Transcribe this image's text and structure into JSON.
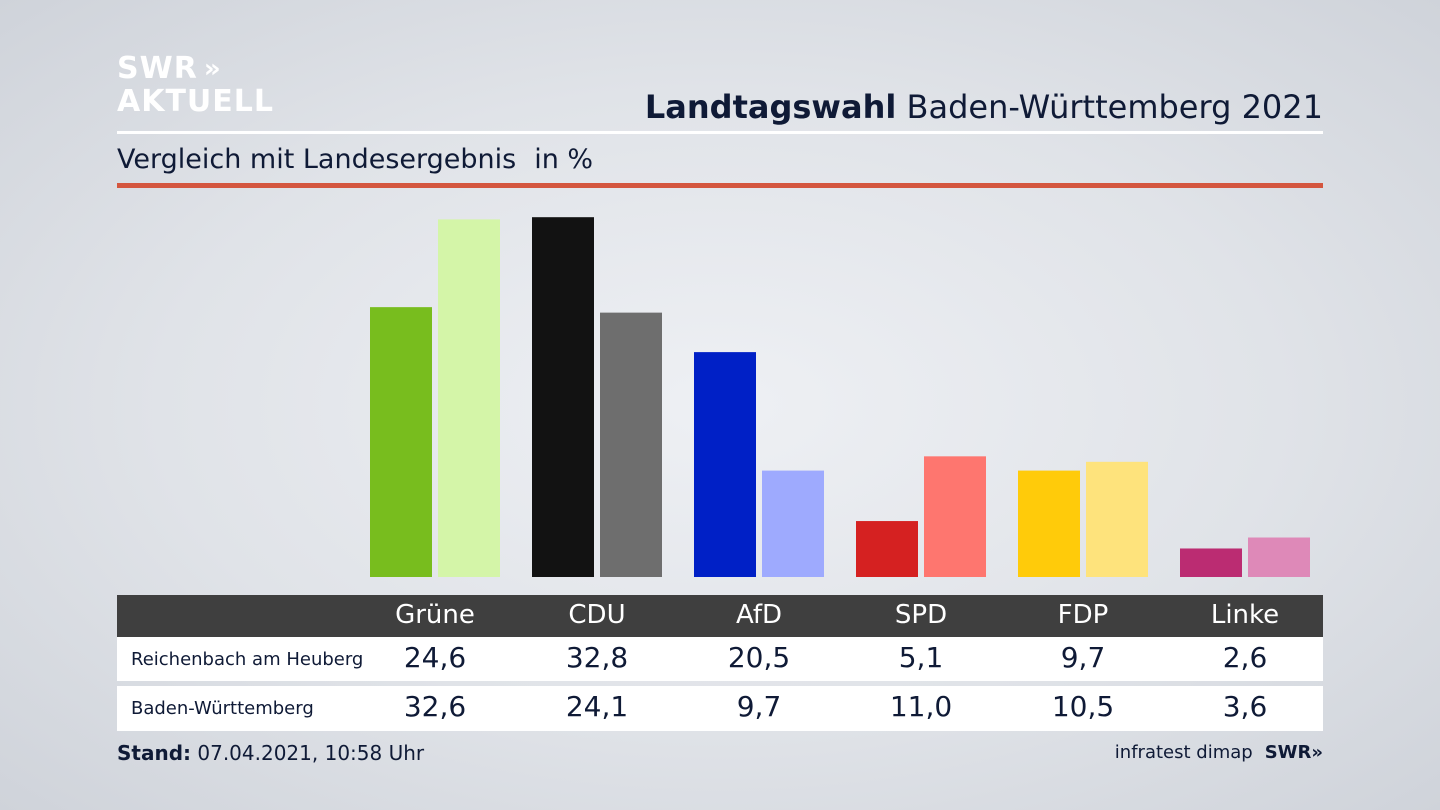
{
  "logo": {
    "line1": "SWR",
    "line2": "AKTUELL",
    "chevrons": "»"
  },
  "header": {
    "title_bold": "Landtagswahl",
    "title_rest": " Baden-Württemberg 2021",
    "subtitle": "Vergleich mit Landesergebnis",
    "unit": "in %"
  },
  "colors": {
    "accent_rule": "#d4563f",
    "table_header_bg": "#3f3f3f"
  },
  "chart_data": {
    "type": "bar",
    "categories": [
      "Grüne",
      "CDU",
      "AfD",
      "SPD",
      "FDP",
      "Linke"
    ],
    "series": [
      {
        "name": "Reichenbach am Heuberg",
        "values": [
          24.6,
          32.8,
          20.5,
          5.1,
          9.7,
          2.6
        ],
        "colors": [
          "#78bd1e",
          "#121212",
          "#0020c6",
          "#d52121",
          "#ffcb0a",
          "#bb2c72"
        ]
      },
      {
        "name": "Baden-Württemberg",
        "values": [
          32.6,
          24.1,
          9.7,
          11.0,
          10.5,
          3.6
        ],
        "colors": [
          "#d4f5a8",
          "#6e6e6e",
          "#9eaafe",
          "#fe766f",
          "#fee37c",
          "#de89b8"
        ]
      }
    ],
    "ylim": [
      0,
      33
    ]
  },
  "table": {
    "rows": [
      {
        "label": "Reichenbach am Heuberg",
        "values": [
          "24,6",
          "32,8",
          "20,5",
          "5,1",
          "9,7",
          "2,6"
        ]
      },
      {
        "label": "Baden-Württemberg",
        "values": [
          "32,6",
          "24,1",
          "9,7",
          "11,0",
          "10,5",
          "3,6"
        ]
      }
    ]
  },
  "footer": {
    "stand_label": "Stand:",
    "stand_value": " 07.04.2021, 10:58 Uhr",
    "source": "infratest dimap",
    "brand": "SWR»"
  }
}
